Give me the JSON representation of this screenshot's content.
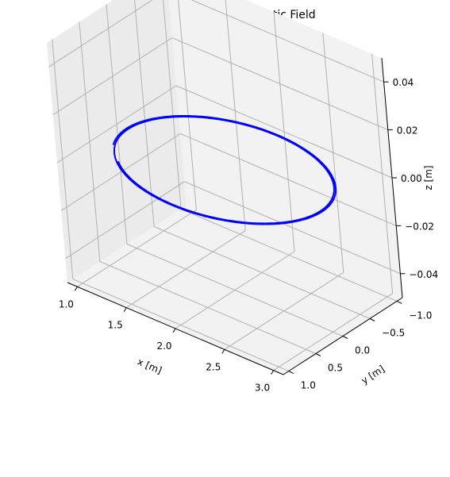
{
  "chart_data": {
    "type": "line",
    "projection": "3d",
    "title": "Circular Motion in Magnetic Field",
    "xlabel": "x [m]",
    "ylabel": "y [m]",
    "zlabel": "z [m]",
    "xlim": [
      0.9,
      3.1
    ],
    "ylim": [
      -1.1,
      1.1
    ],
    "zlim": [
      -0.05,
      0.05
    ],
    "xticks": [
      1.0,
      1.5,
      2.0,
      2.5,
      3.0
    ],
    "xtick_labels": [
      "1.0",
      "1.5",
      "2.0",
      "2.5",
      "3.0"
    ],
    "yticks": [
      -1.0,
      -0.5,
      0.0,
      0.5,
      1.0
    ],
    "ytick_labels": [
      "−1.0",
      "−0.5",
      "0.0",
      "0.5",
      "1.0"
    ],
    "zticks": [
      -0.04,
      -0.02,
      0.0,
      0.02,
      0.04
    ],
    "ztick_labels": [
      "−0.04",
      "−0.02",
      "0.00",
      "0.02",
      "0.04"
    ],
    "grid": true,
    "series": [
      {
        "color": "#0000ff",
        "trajectory": {
          "center_x": 2.0,
          "center_y": 0.0,
          "radius": 1.0,
          "z": 0.0,
          "turns": 1.95
        }
      }
    ]
  }
}
